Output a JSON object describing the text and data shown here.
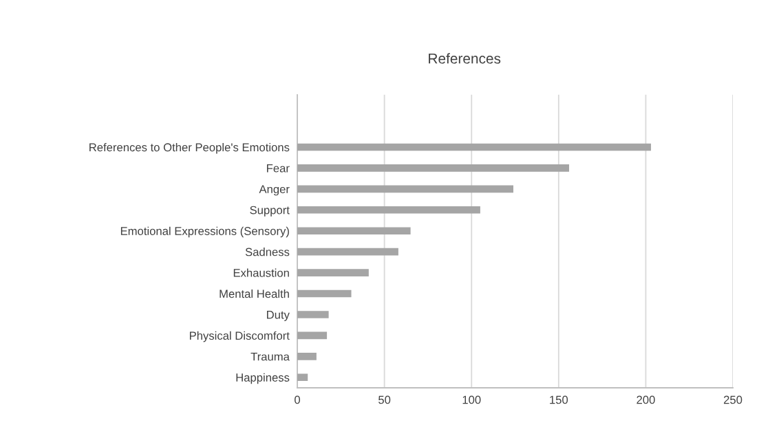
{
  "chart_data": {
    "type": "bar",
    "orientation": "horizontal",
    "title": "References",
    "categories": [
      null,
      null,
      "References to Other People's Emotions",
      "Fear",
      "Anger",
      "Support",
      "Emotional Expressions (Sensory)",
      "Sadness",
      "Exhaustion",
      "Mental Health",
      "Duty",
      "Physical Discomfort",
      "Trauma",
      "Happiness"
    ],
    "values": [
      null,
      null,
      203,
      156,
      124,
      105,
      65,
      58,
      41,
      31,
      18,
      17,
      11,
      6
    ],
    "color": "#a5a5a5",
    "xlim": [
      0,
      250
    ],
    "xticks": [
      0,
      50,
      100,
      150,
      200,
      250
    ],
    "grid": "x",
    "legend": false
  }
}
